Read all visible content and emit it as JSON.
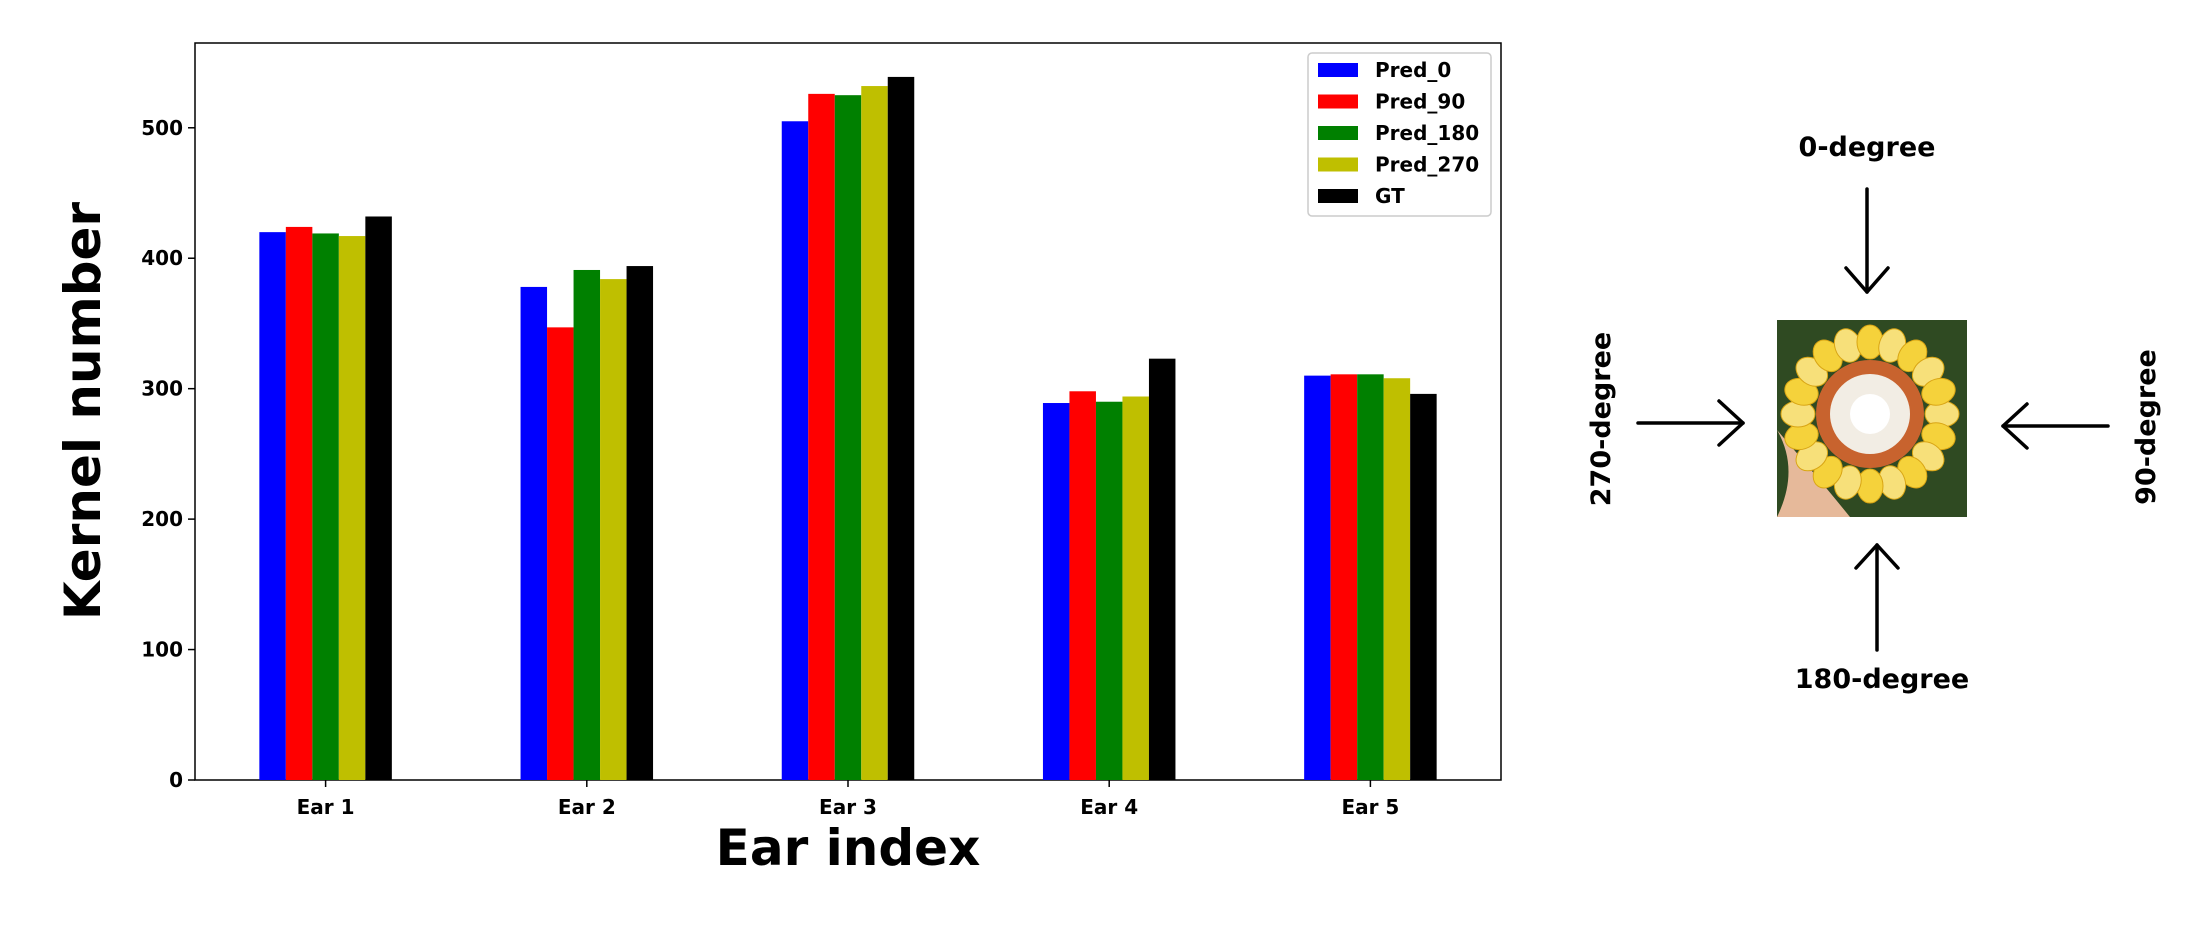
{
  "chart_data": {
    "type": "bar",
    "categories": [
      "Ear 1",
      "Ear 2",
      "Ear 3",
      "Ear 4",
      "Ear 5"
    ],
    "series": [
      {
        "name": "Pred_0",
        "color": "#0000ff",
        "values": [
          420,
          378,
          505,
          289,
          310
        ]
      },
      {
        "name": "Pred_90",
        "color": "#ff0000",
        "values": [
          424,
          347,
          526,
          298,
          311
        ]
      },
      {
        "name": "Pred_180",
        "color": "#008000",
        "values": [
          419,
          391,
          525,
          290,
          311
        ]
      },
      {
        "name": "Pred_270",
        "color": "#bfbf00",
        "values": [
          417,
          384,
          532,
          294,
          308
        ]
      },
      {
        "name": "GT",
        "color": "#000000",
        "values": [
          432,
          394,
          539,
          323,
          296
        ]
      }
    ],
    "title": "",
    "xlabel": "Ear index",
    "ylabel": "Kernel number",
    "ylim": [
      0,
      565
    ],
    "yticks": [
      0,
      100,
      200,
      300,
      400,
      500
    ],
    "grid": false,
    "legend_position": "top-right"
  },
  "diagram": {
    "labels": {
      "top": "0-degree",
      "right": "90-degree",
      "bottom": "180-degree",
      "left": "270-degree"
    },
    "image_description_icon": "corn-ear-cross-section-photo"
  }
}
